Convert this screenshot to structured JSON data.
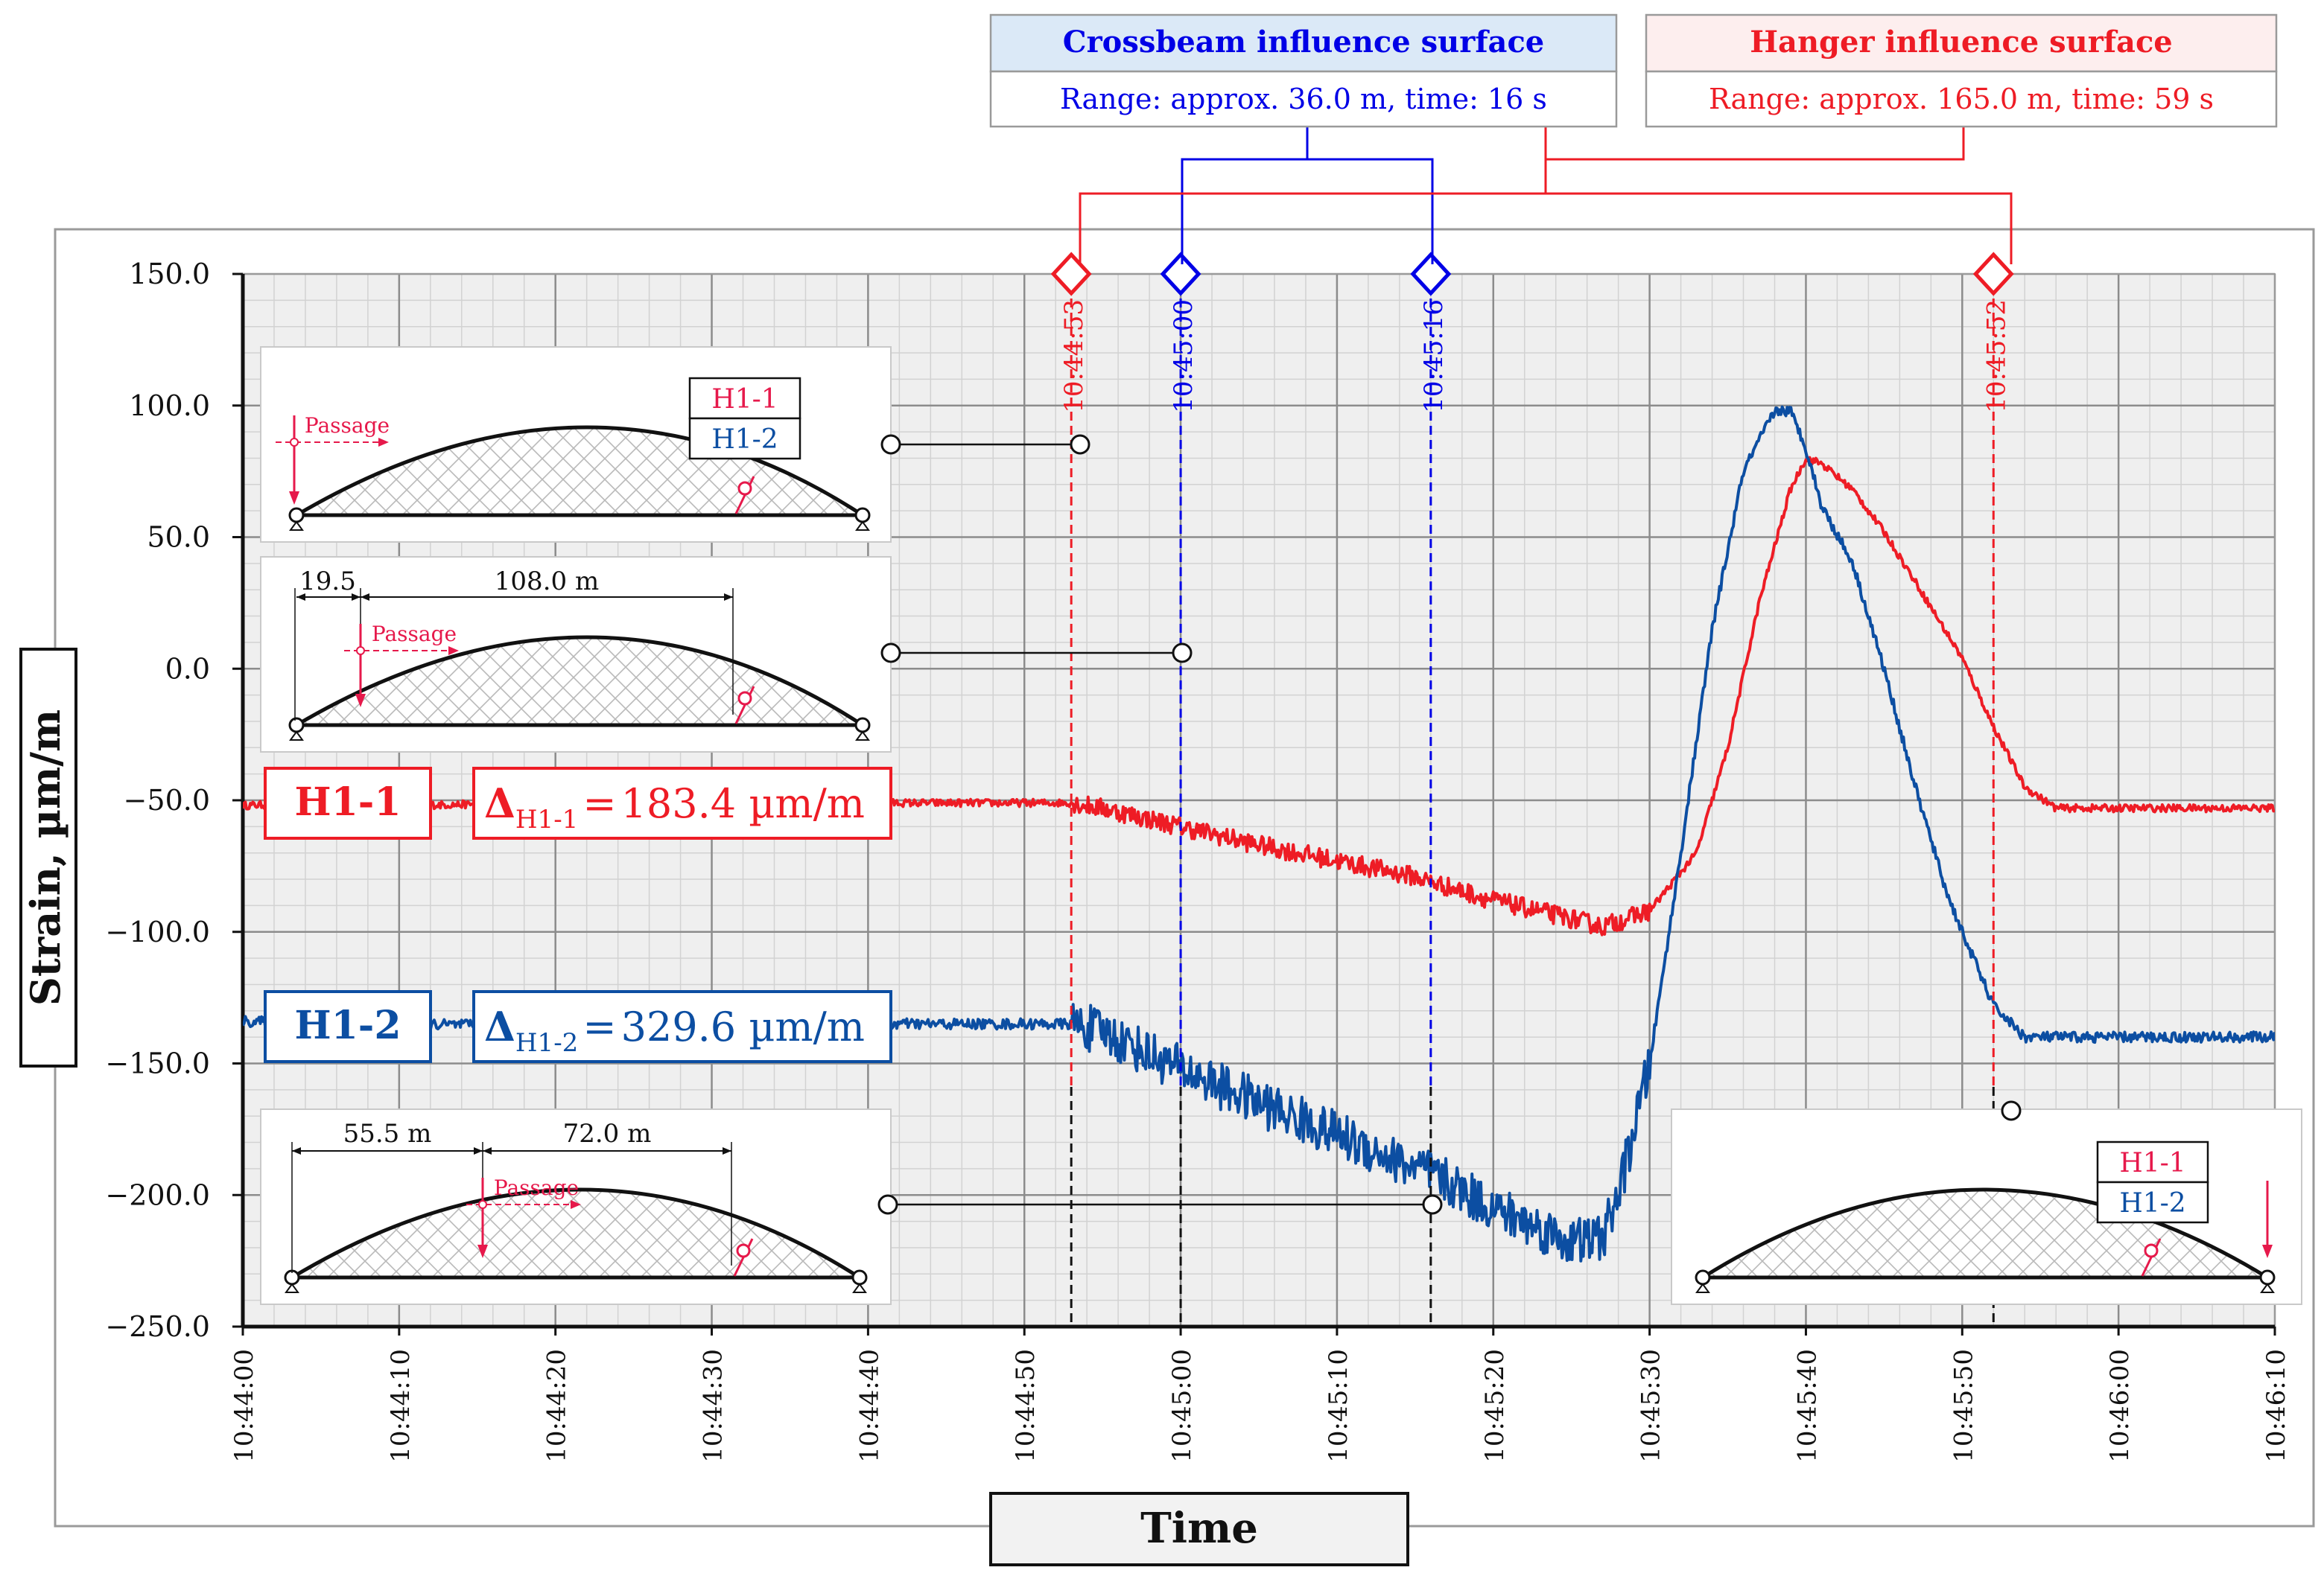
{
  "chart_data": {
    "type": "line",
    "title": "",
    "xlabel": "Time",
    "ylabel": "Strain, µm/m",
    "ylim": [
      -250,
      150
    ],
    "yticks": [
      "150.0",
      "100.0",
      "50.0",
      "0.0",
      "−50.0",
      "−100.0",
      "−150.0",
      "−200.0",
      "−250.0"
    ],
    "ytick_values": [
      150,
      100,
      50,
      0,
      -50,
      -100,
      -150,
      -200,
      -250
    ],
    "xlim_seconds": [
      0,
      130
    ],
    "xticks": [
      "10:44:00",
      "10:44:10",
      "10:44:20",
      "10:44:30",
      "10:44:40",
      "10:44:50",
      "10:45:00",
      "10:45:10",
      "10:45:20",
      "10:45:30",
      "10:45:40",
      "10:45:50",
      "10:46:00",
      "10:46:10"
    ],
    "xtick_seconds": [
      0,
      10,
      20,
      30,
      40,
      50,
      60,
      70,
      80,
      90,
      100,
      110,
      120,
      130
    ],
    "grid": true,
    "series": [
      {
        "name": "H1-1",
        "color": "#ee1c25",
        "x": [
          0,
          5,
          10,
          20,
          30,
          40,
          50,
          53,
          55,
          60,
          65,
          70,
          75,
          76,
          80,
          85,
          87,
          90,
          93,
          95,
          97,
          99,
          100,
          101,
          103,
          105,
          107,
          110,
          112,
          114,
          116,
          120,
          125,
          130
        ],
        "y": [
          -52,
          -51,
          -52,
          -51,
          -52,
          -51,
          -51,
          -51,
          -53,
          -60,
          -67,
          -73,
          -79,
          -81,
          -88,
          -95,
          -98,
          -92,
          -70,
          -30,
          25,
          68,
          80,
          78,
          68,
          52,
          33,
          4,
          -22,
          -45,
          -53,
          -53,
          -53,
          -53
        ]
      },
      {
        "name": "H1-2",
        "color": "#0c4ea2",
        "x": [
          0,
          5,
          10,
          20,
          30,
          40,
          50,
          53,
          55,
          60,
          65,
          70,
          75,
          76,
          80,
          85,
          87,
          88,
          90,
          92,
          94,
          96,
          98,
          99,
          100,
          101,
          103,
          105,
          107,
          109,
          110,
          112,
          114,
          116,
          120,
          125,
          130
        ],
        "y": [
          -134,
          -135,
          -135,
          -136,
          -135,
          -135,
          -135,
          -135,
          -138,
          -152,
          -165,
          -177,
          -190,
          -192,
          -205,
          -218,
          -216,
          -200,
          -150,
          -70,
          15,
          75,
          98,
          98,
          84,
          62,
          40,
          0,
          -45,
          -85,
          -100,
          -128,
          -140,
          -140,
          -140,
          -140,
          -140
        ]
      }
    ],
    "markers": [
      {
        "label": "10:44:53",
        "seconds": 53,
        "color": "#ee1c25"
      },
      {
        "label": "10:45:00",
        "seconds": 60,
        "color": "#0000e6"
      },
      {
        "label": "10:45:16",
        "seconds": 76,
        "color": "#0000e6"
      },
      {
        "label": "10:45:52",
        "seconds": 112,
        "color": "#ee1c25"
      }
    ],
    "legend_boxes": [
      {
        "name": "H1-1",
        "delta_symbol": "Δ",
        "delta_sub": "H1-1",
        "eq": "=",
        "delta_value": "183.4 µm/m",
        "color": "#ee1c25"
      },
      {
        "name": "H1-2",
        "delta_symbol": "Δ",
        "delta_sub": "H1-2",
        "eq": "=",
        "delta_value": "329.6 µm/m",
        "color": "#0c4ea2"
      }
    ],
    "annotations": {
      "crossbeam": {
        "title": "Crossbeam influence surface",
        "range": "Range: approx. 36.0 m, time: 16 s"
      },
      "hanger": {
        "title": "Hanger influence surface",
        "range": "Range: approx. 165.0 m, time: 59 s"
      }
    },
    "insets": [
      {
        "passage": "Passage",
        "tags": [
          "H1-1",
          "H1-2"
        ]
      },
      {
        "passage": "Passage",
        "dim1": "19.5",
        "dim2": "108.0 m"
      },
      {
        "passage": "Passage",
        "dim1": "55.5 m",
        "dim2": "72.0 m"
      },
      {
        "tags": [
          "H1-1",
          "H1-2"
        ]
      }
    ]
  }
}
